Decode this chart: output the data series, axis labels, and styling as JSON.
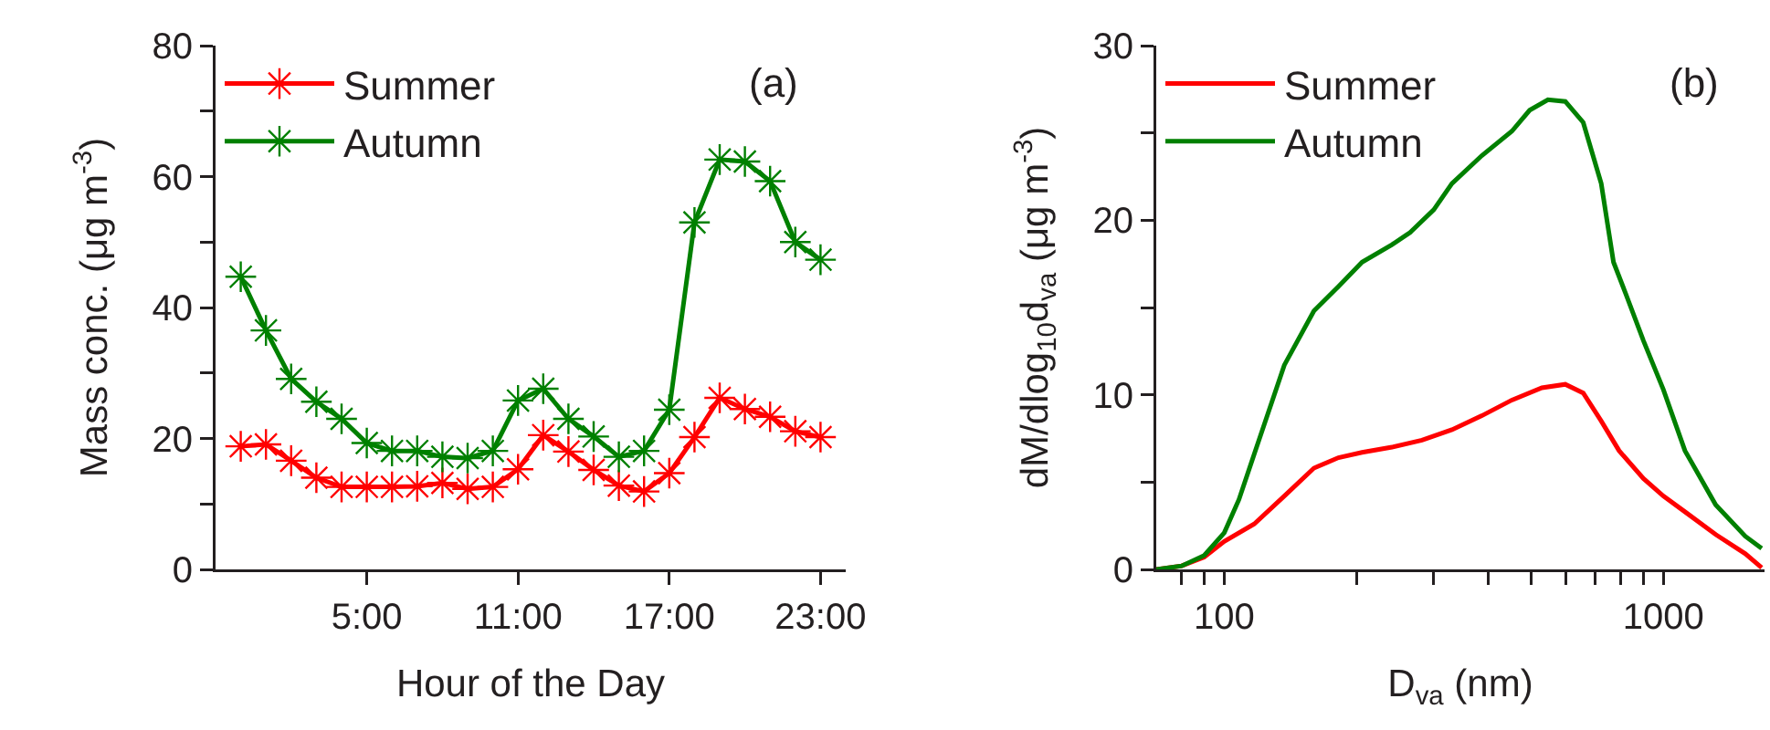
{
  "chart_data": [
    {
      "type": "line",
      "xlabel": "Hour of the Day",
      "ylabel": "Mass conc. (μg m$^{-3}$)",
      "annotations": [
        "(a)"
      ],
      "marker": "cross",
      "legend": "top left",
      "grid": false,
      "x": [
        0,
        1,
        2,
        3,
        4,
        5,
        6,
        7,
        8,
        9,
        10,
        11,
        12,
        13,
        14,
        15,
        16,
        17,
        18,
        19,
        20,
        21,
        22,
        23
      ],
      "xlim": [
        -1,
        24
      ],
      "xticks": [
        {
          "value": 5,
          "label": "5:00"
        },
        {
          "value": 11,
          "label": "11:00"
        },
        {
          "value": 17,
          "label": "17:00"
        },
        {
          "value": 23,
          "label": "23:00"
        }
      ],
      "ylim": [
        0,
        80
      ],
      "yticks": [
        0,
        {
          "value": 10,
          "label": null
        },
        20,
        {
          "value": 30,
          "label": null
        },
        40,
        {
          "value": 50,
          "label": null
        },
        60,
        {
          "value": 70,
          "label": null
        },
        80
      ],
      "series": [
        {
          "name": "Summer",
          "color": "#ff0000",
          "values": [
            18.8,
            19.1,
            16.6,
            14.0,
            12.6,
            12.6,
            12.6,
            12.7,
            13.2,
            12.3,
            12.6,
            15.3,
            20.5,
            18.0,
            15.2,
            12.8,
            11.9,
            14.7,
            20.2,
            26.2,
            24.5,
            23.3,
            21.1,
            20.2
          ]
        },
        {
          "name": "Autumn",
          "color": "#008000",
          "values": [
            44.7,
            36.5,
            29.1,
            25.6,
            23.0,
            19.3,
            18.1,
            18.1,
            17.2,
            17.0,
            18.1,
            25.8,
            27.6,
            23.0,
            20.3,
            17.2,
            18.1,
            24.4,
            53.0,
            62.6,
            62.3,
            59.3,
            50.0,
            47.3
          ]
        }
      ]
    },
    {
      "type": "line",
      "xlabel": "D$_{va}$ (nm)",
      "ylabel": "dM/dlog$_{10}$d$_{va}$ (μg m$^{-3}$)",
      "annotations": [
        "(b)"
      ],
      "marker": "none",
      "legend": "top left",
      "grid": false,
      "log": "x",
      "xlim": [
        70,
        1700
      ],
      "xticks": [
        {
          "value": 80,
          "label": null
        },
        {
          "value": 90,
          "label": null
        },
        100,
        {
          "value": 200,
          "label": null
        },
        {
          "value": 300,
          "label": null
        },
        {
          "value": 400,
          "label": null
        },
        {
          "value": 500,
          "label": null
        },
        {
          "value": 600,
          "label": null
        },
        {
          "value": 700,
          "label": null
        },
        {
          "value": 800,
          "label": null
        },
        {
          "value": 900,
          "label": null
        },
        1000
      ],
      "ylim": [
        0,
        30
      ],
      "yticks": [
        0,
        {
          "value": 5,
          "label": null
        },
        10,
        {
          "value": 15,
          "label": null
        },
        20,
        {
          "value": 25,
          "label": null
        },
        30
      ],
      "series": [
        {
          "name": "Summer",
          "color": "#ff0000",
          "x": [
            70,
            80,
            90,
            100,
            117,
            137,
            160,
            182,
            206,
            241,
            282,
            330,
            386,
            452,
            529,
            598,
            657,
            722,
            793,
            901,
            1000,
            1120,
            1316,
            1537,
            1675
          ],
          "values": [
            0,
            0.2,
            0.7,
            1.6,
            2.6,
            4.2,
            5.8,
            6.4,
            6.7,
            7.0,
            7.4,
            8.0,
            8.8,
            9.7,
            10.4,
            10.6,
            10.1,
            8.5,
            6.8,
            5.2,
            4.2,
            3.3,
            2.0,
            0.9,
            0.1
          ]
        },
        {
          "name": "Autumn",
          "color": "#008000",
          "x": [
            70,
            80,
            90,
            100,
            108,
            117,
            137,
            160,
            182,
            206,
            241,
            265,
            300,
            330,
            386,
            452,
            496,
            546,
            598,
            657,
            722,
            770,
            818,
            901,
            1000,
            1120,
            1316,
            1537,
            1675
          ],
          "values": [
            0,
            0.2,
            0.8,
            2.1,
            4.0,
            6.6,
            11.7,
            14.8,
            16.2,
            17.6,
            18.6,
            19.3,
            20.6,
            22.1,
            23.7,
            25.1,
            26.3,
            26.9,
            26.8,
            25.6,
            22.1,
            17.6,
            15.9,
            13.1,
            10.3,
            6.8,
            3.7,
            1.9,
            1.2
          ]
        }
      ]
    }
  ]
}
